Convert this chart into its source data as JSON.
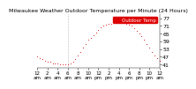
{
  "title": "Milwaukee Weather Outdoor Temperature per Minute (24 Hours)",
  "bg_color": "#ffffff",
  "line_color": "#dd0000",
  "legend_color": "#dd0000",
  "yticks": [
    41,
    47,
    53,
    59,
    65,
    71,
    77
  ],
  "ylim": [
    38,
    80
  ],
  "xlim": [
    0,
    1440
  ],
  "vline_x": 360,
  "time_points": [
    0,
    30,
    60,
    90,
    120,
    150,
    180,
    210,
    240,
    270,
    300,
    330,
    360,
    390,
    420,
    450,
    480,
    510,
    540,
    570,
    600,
    630,
    660,
    690,
    720,
    750,
    780,
    810,
    840,
    870,
    900,
    930,
    960,
    990,
    1020,
    1050,
    1080,
    1110,
    1140,
    1170,
    1200,
    1230,
    1260,
    1290,
    1320,
    1350,
    1380,
    1410,
    1440
  ],
  "temperatures": [
    47,
    46,
    45,
    44,
    43,
    43,
    42,
    42,
    42,
    41,
    41,
    41,
    41,
    42,
    43,
    45,
    48,
    51,
    54,
    57,
    60,
    62,
    64,
    66,
    68,
    70,
    71,
    72,
    73,
    73,
    74,
    74,
    75,
    74,
    74,
    73,
    72,
    71,
    69,
    67,
    65,
    63,
    60,
    57,
    54,
    51,
    48,
    46,
    44
  ],
  "xtick_positions": [
    0,
    120,
    240,
    360,
    480,
    600,
    720,
    840,
    960,
    1080,
    1200,
    1320,
    1440
  ],
  "xtick_labels": [
    "12\nam",
    "2\nam",
    "4\nam",
    "6\nam",
    "8\nam",
    "10\nam",
    "12\npm",
    "2\npm",
    "4\npm",
    "6\npm",
    "8\npm",
    "10\npm",
    "12\nam"
  ],
  "legend_label": "Outdoor Temp",
  "marker_size": 1.5,
  "font_size": 4.5,
  "title_font_size": 4.5
}
